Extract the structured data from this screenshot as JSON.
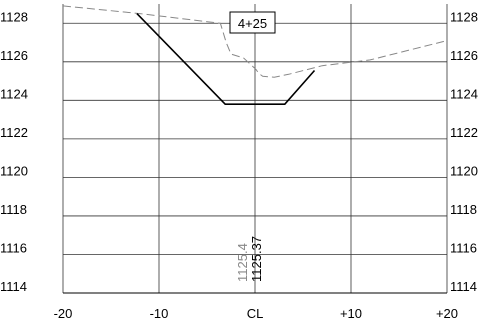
{
  "chart_data": {
    "type": "line",
    "title": "",
    "xlabel": "",
    "ylabel": "",
    "station_label": "4+25",
    "xlim": [
      -20,
      20
    ],
    "ylim": [
      1114,
      1129
    ],
    "x_ticks": [
      {
        "value": -20,
        "label": "-20"
      },
      {
        "value": -10,
        "label": "-10"
      },
      {
        "value": 0,
        "label": "CL"
      },
      {
        "value": 10,
        "label": "+10"
      },
      {
        "value": 20,
        "label": "+20"
      }
    ],
    "y_ticks": [
      1114,
      1116,
      1118,
      1120,
      1122,
      1124,
      1126,
      1128
    ],
    "y_tick_labels_left": [
      "1114",
      "1116",
      "1118",
      "1120",
      "1122",
      "1124",
      "1126",
      "1128"
    ],
    "y_tick_labels_right": [
      "1114",
      "1116",
      "1118",
      "1120",
      "1122",
      "1124",
      "1126",
      "1128"
    ],
    "series": [
      {
        "style": "dashed",
        "color": "#888888",
        "x": [
          -20,
          -12,
          -3.6,
          -3.0,
          -2.5,
          -1.2,
          0.1,
          0.4,
          0.8,
          2.0,
          3.5,
          7.0,
          12.0,
          20.0
        ],
        "y": [
          1128.9,
          1128.5,
          1128.0,
          1127.0,
          1126.4,
          1126.2,
          1125.6,
          1125.4,
          1125.25,
          1125.2,
          1125.35,
          1125.8,
          1126.1,
          1127.1
        ]
      },
      {
        "style": "solid",
        "color": "#000000",
        "x": [
          -12.3,
          -3.1,
          3.1,
          6.2
        ],
        "y": [
          1128.5,
          1123.8,
          1123.8,
          1125.55
        ]
      }
    ],
    "centerline_elevations": [
      {
        "label": "1125.4",
        "color": "#888888"
      },
      {
        "label": "1125.37",
        "color": "#000000"
      }
    ],
    "grid": true
  }
}
